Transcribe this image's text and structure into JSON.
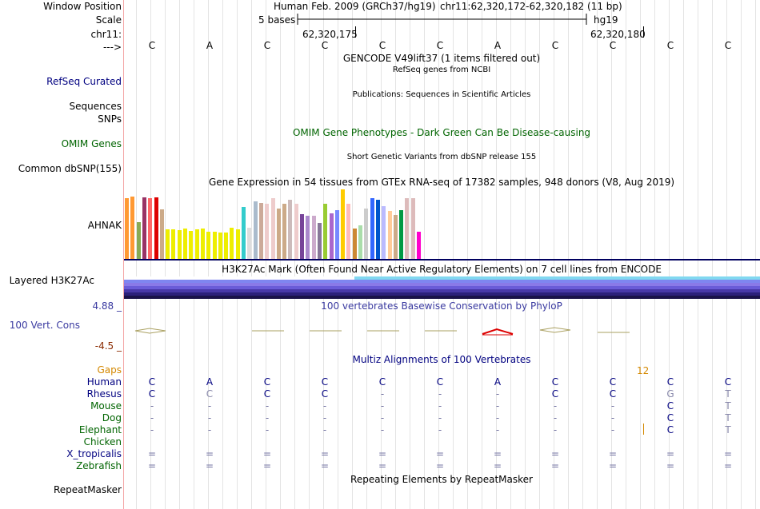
{
  "labels": {
    "window_position": "Window Position",
    "scale": "Scale",
    "chrom": "chr11:",
    "strand": "--->",
    "refseq": "RefSeq Curated",
    "sequences": "Sequences",
    "snps": "SNPs",
    "omim": "OMIM Genes",
    "common_dbsnp": "Common dbSNP(155)",
    "ahnak": "AHNAK",
    "h3k27ac": "Layered H3K27Ac",
    "cons_max": "4.88 _",
    "cons": "100 Vert. Cons",
    "cons_min": "-4.5 _",
    "repeatmasker": "RepeatMasker"
  },
  "header": {
    "assembly": "Human Feb. 2009 (GRCh37/hg19)",
    "position": "chr11:62,320,172-62,320,182 (11 bp)",
    "scale_text": "5 bases",
    "db": "hg19",
    "coord1": "62,320,175",
    "coord2": "62,320,180"
  },
  "bases": [
    "C",
    "A",
    "C",
    "C",
    "C",
    "C",
    "A",
    "C",
    "C",
    "C",
    "C"
  ],
  "tracks": {
    "gencode": "GENCODE V49lift37 (1 items filtered out)",
    "refseq": "RefSeq genes from NCBI",
    "publications": "Publications: Sequences in Scientific Articles",
    "omim": "OMIM Gene Phenotypes - Dark Green Can Be Disease-causing",
    "dbsnp": "Short Genetic Variants from dbSNP release 155",
    "gtex": "Gene Expression in 54 tissues from GTEx RNA-seq of 17382 samples, 948 donors (V8, Aug 2019)",
    "h3k27ac": "H3K27Ac Mark (Often Found Near Active Regulatory Elements) on 7 cell lines from ENCODE",
    "phylop": "100 vertebrates Basewise Conservation by PhyloP",
    "multiz": "Multiz Alignments of 100 Vertebrates",
    "repeat": "Repeating Elements by RepeatMasker"
  },
  "alignment": {
    "gaps_label": "Gaps",
    "gap_count": "12",
    "species": [
      {
        "name": "Human",
        "color": "#000080",
        "seq": [
          "C",
          "A",
          "C",
          "C",
          "C",
          "C",
          "A",
          "C",
          "C",
          "C",
          "C"
        ]
      },
      {
        "name": "Rhesus",
        "color": "#000080",
        "seq": [
          "C",
          "C",
          "C",
          "C",
          "-",
          "-",
          "-",
          "C",
          "C",
          "G",
          "T"
        ]
      },
      {
        "name": "Mouse",
        "color": "#006400",
        "seq": [
          "-",
          "-",
          "-",
          "-",
          "-",
          "-",
          "-",
          "-",
          "-",
          "C",
          "T"
        ]
      },
      {
        "name": "Dog",
        "color": "#006400",
        "seq": [
          "-",
          "-",
          "-",
          "-",
          "-",
          "-",
          "-",
          "-",
          "-",
          "C",
          "T"
        ]
      },
      {
        "name": "Elephant",
        "color": "#006400",
        "seq": [
          "-",
          "-",
          "-",
          "-",
          "-",
          "-",
          "-",
          "-",
          "-",
          "C",
          "T"
        ]
      },
      {
        "name": "Chicken",
        "color": "#006400",
        "seq": [
          "",
          "",
          "",
          "",
          "",
          "",
          "",
          "",
          "",
          "",
          ""
        ]
      },
      {
        "name": "X_tropicalis",
        "color": "#000080",
        "seq": [
          "=",
          "=",
          "=",
          "=",
          "=",
          "=",
          "=",
          "=",
          "=",
          "=",
          "="
        ]
      },
      {
        "name": "Zebrafish",
        "color": "#006400",
        "seq": [
          "=",
          "=",
          "=",
          "=",
          "=",
          "=",
          "=",
          "=",
          "=",
          "=",
          "="
        ]
      }
    ]
  },
  "gtex_data": {
    "tissues": [
      {
        "v": 0.87,
        "c": "#ff9933"
      },
      {
        "v": 0.9,
        "c": "#ff9933"
      },
      {
        "v": 0.53,
        "c": "#88aa55"
      },
      {
        "v": 0.89,
        "c": "#993366"
      },
      {
        "v": 0.87,
        "c": "#ff6666"
      },
      {
        "v": 0.89,
        "c": "#dd0000"
      },
      {
        "v": 0.72,
        "c": "#ccaa88"
      },
      {
        "v": 0.43,
        "c": "#eeee00"
      },
      {
        "v": 0.43,
        "c": "#eeee00"
      },
      {
        "v": 0.42,
        "c": "#eeee00"
      },
      {
        "v": 0.44,
        "c": "#eeee00"
      },
      {
        "v": 0.41,
        "c": "#eeee00"
      },
      {
        "v": 0.43,
        "c": "#eeee00"
      },
      {
        "v": 0.44,
        "c": "#eeee00"
      },
      {
        "v": 0.4,
        "c": "#eeee00"
      },
      {
        "v": 0.4,
        "c": "#eeee00"
      },
      {
        "v": 0.39,
        "c": "#eeee00"
      },
      {
        "v": 0.39,
        "c": "#eeee00"
      },
      {
        "v": 0.45,
        "c": "#eeee00"
      },
      {
        "v": 0.43,
        "c": "#eeee00"
      },
      {
        "v": 0.75,
        "c": "#33cccc"
      },
      {
        "v": 0.45,
        "c": "#dddddd"
      },
      {
        "v": 0.83,
        "c": "#aabbcc"
      },
      {
        "v": 0.81,
        "c": "#ccaa99"
      },
      {
        "v": 0.8,
        "c": "#eecccc"
      },
      {
        "v": 0.87,
        "c": "#eecccc"
      },
      {
        "v": 0.73,
        "c": "#ccaa88"
      },
      {
        "v": 0.8,
        "c": "#ccaa88"
      },
      {
        "v": 0.85,
        "c": "#ccbbbb"
      },
      {
        "v": 0.8,
        "c": "#eecccc"
      },
      {
        "v": 0.65,
        "c": "#774499"
      },
      {
        "v": 0.63,
        "c": "#aa88cc"
      },
      {
        "v": 0.62,
        "c": "#ccaacc"
      },
      {
        "v": 0.52,
        "c": "#887799"
      },
      {
        "v": 0.79,
        "c": "#99cc33"
      },
      {
        "v": 0.66,
        "c": "#aa66cc"
      },
      {
        "v": 0.7,
        "c": "#7788ff"
      },
      {
        "v": 1.0,
        "c": "#ffcc00"
      },
      {
        "v": 0.79,
        "c": "#ffbbbb"
      },
      {
        "v": 0.44,
        "c": "#cc8833"
      },
      {
        "v": 0.49,
        "c": "#aaddaa"
      },
      {
        "v": 0.73,
        "c": "#cccccc"
      },
      {
        "v": 0.87,
        "c": "#3366ff"
      },
      {
        "v": 0.85,
        "c": "#0055cc"
      },
      {
        "v": 0.76,
        "c": "#bbbbff"
      },
      {
        "v": 0.69,
        "c": "#ffcc99"
      },
      {
        "v": 0.64,
        "c": "#ccaa88"
      },
      {
        "v": 0.71,
        "c": "#009944"
      },
      {
        "v": 0.88,
        "c": "#ddbbbb"
      },
      {
        "v": 0.88,
        "c": "#ddbbbb"
      },
      {
        "v": 0.4,
        "c": "#ff00cc"
      }
    ]
  },
  "colors": {
    "label_blue": "#000080",
    "label_green": "#006400",
    "cons_blue": "#3a3aa0",
    "cons_max": "#3a3aa0",
    "cons_min": "#8a2a00",
    "gaps": "#d48800",
    "h3k27ac_bands": [
      "#81d8f0",
      "#7f86f0",
      "#8a7ae8",
      "#6a5cd8",
      "#4838a8",
      "#2c207a",
      "#1a1248"
    ]
  }
}
